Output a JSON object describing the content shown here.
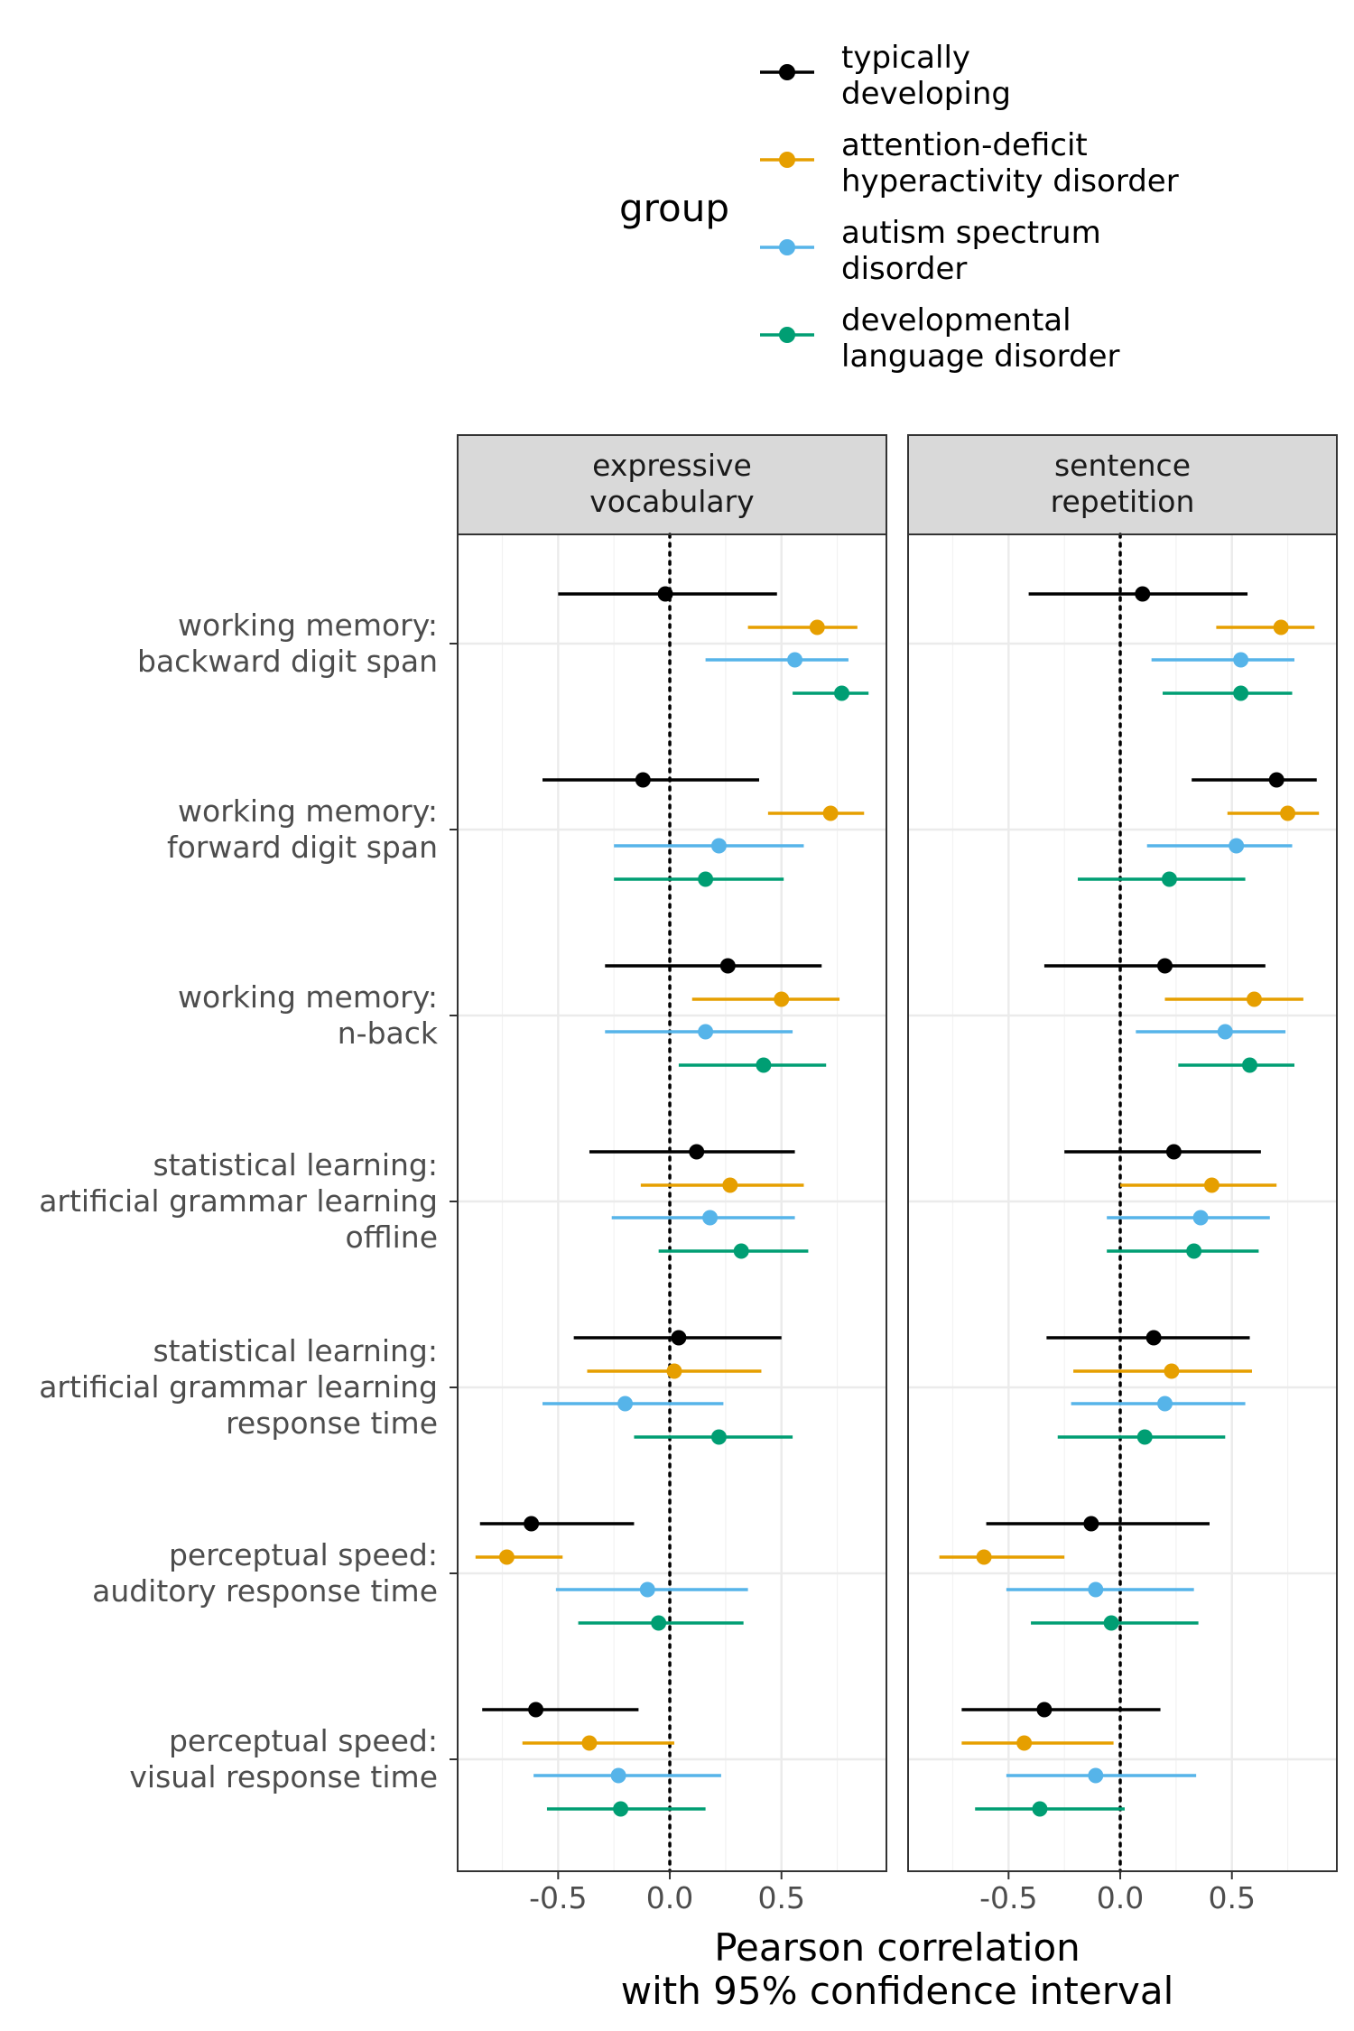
{
  "chart_data": {
    "type": "scatter",
    "xlabel": [
      "Pearson correlation",
      "with 95% confidence interval"
    ],
    "xticks": [
      "-0.5",
      "0.0",
      "0.5"
    ],
    "xtick_values": [
      -0.5,
      0.0,
      0.5
    ],
    "xlim": [
      -0.95,
      0.97
    ],
    "reference_line": 0,
    "grid": true,
    "legend": {
      "title": "group",
      "position": "top",
      "entries": [
        {
          "label": [
            "typically",
            "developing"
          ],
          "color": "#000000"
        },
        {
          "label": [
            "attention-deficit",
            "hyperactivity disorder"
          ],
          "color": "#E69F00"
        },
        {
          "label": [
            "autism spectrum",
            "disorder"
          ],
          "color": "#56B4E9"
        },
        {
          "label": [
            "developmental",
            "language disorder"
          ],
          "color": "#009E73"
        }
      ]
    },
    "categories": [
      {
        "label": [
          "working memory:",
          "backward digit span"
        ]
      },
      {
        "label": [
          "working memory:",
          "forward digit span"
        ]
      },
      {
        "label": [
          "working memory:",
          "n-back"
        ]
      },
      {
        "label": [
          "statistical learning:",
          "artificial grammar learning",
          "offline"
        ]
      },
      {
        "label": [
          "statistical learning:",
          "artificial grammar learning",
          "response time"
        ]
      },
      {
        "label": [
          "perceptual speed:",
          "auditory response time"
        ]
      },
      {
        "label": [
          "perceptual speed:",
          "visual response time"
        ]
      }
    ],
    "panels": [
      {
        "title": [
          "expressive",
          "vocabulary"
        ],
        "series": [
          {
            "group": "typically developing",
            "color": "#000000",
            "points": [
              {
                "r": -0.02,
                "lo": -0.5,
                "hi": 0.48
              },
              {
                "r": -0.12,
                "lo": -0.57,
                "hi": 0.4
              },
              {
                "r": 0.26,
                "lo": -0.29,
                "hi": 0.68
              },
              {
                "r": 0.12,
                "lo": -0.36,
                "hi": 0.56
              },
              {
                "r": 0.04,
                "lo": -0.43,
                "hi": 0.5
              },
              {
                "r": -0.62,
                "lo": -0.85,
                "hi": -0.16
              },
              {
                "r": -0.6,
                "lo": -0.84,
                "hi": -0.14
              }
            ]
          },
          {
            "group": "attention-deficit hyperactivity disorder",
            "color": "#E69F00",
            "points": [
              {
                "r": 0.66,
                "lo": 0.35,
                "hi": 0.84
              },
              {
                "r": 0.72,
                "lo": 0.44,
                "hi": 0.87
              },
              {
                "r": 0.5,
                "lo": 0.1,
                "hi": 0.76
              },
              {
                "r": 0.27,
                "lo": -0.13,
                "hi": 0.6
              },
              {
                "r": 0.02,
                "lo": -0.37,
                "hi": 0.41
              },
              {
                "r": -0.73,
                "lo": -0.87,
                "hi": -0.48
              },
              {
                "r": -0.36,
                "lo": -0.66,
                "hi": 0.02
              }
            ]
          },
          {
            "group": "autism spectrum disorder",
            "color": "#56B4E9",
            "points": [
              {
                "r": 0.56,
                "lo": 0.16,
                "hi": 0.8
              },
              {
                "r": 0.22,
                "lo": -0.25,
                "hi": 0.6
              },
              {
                "r": 0.16,
                "lo": -0.29,
                "hi": 0.55
              },
              {
                "r": 0.18,
                "lo": -0.26,
                "hi": 0.56
              },
              {
                "r": -0.2,
                "lo": -0.57,
                "hi": 0.24
              },
              {
                "r": -0.1,
                "lo": -0.51,
                "hi": 0.35
              },
              {
                "r": -0.23,
                "lo": -0.61,
                "hi": 0.23
              }
            ]
          },
          {
            "group": "developmental language disorder",
            "color": "#009E73",
            "points": [
              {
                "r": 0.77,
                "lo": 0.55,
                "hi": 0.89
              },
              {
                "r": 0.16,
                "lo": -0.25,
                "hi": 0.51
              },
              {
                "r": 0.42,
                "lo": 0.04,
                "hi": 0.7
              },
              {
                "r": 0.32,
                "lo": -0.05,
                "hi": 0.62
              },
              {
                "r": 0.22,
                "lo": -0.16,
                "hi": 0.55
              },
              {
                "r": -0.05,
                "lo": -0.41,
                "hi": 0.33
              },
              {
                "r": -0.22,
                "lo": -0.55,
                "hi": 0.16
              }
            ]
          }
        ]
      },
      {
        "title": [
          "sentence",
          "repetition"
        ],
        "series": [
          {
            "group": "typically developing",
            "color": "#000000",
            "points": [
              {
                "r": 0.1,
                "lo": -0.41,
                "hi": 0.57
              },
              {
                "r": 0.7,
                "lo": 0.32,
                "hi": 0.88
              },
              {
                "r": 0.2,
                "lo": -0.34,
                "hi": 0.65
              },
              {
                "r": 0.24,
                "lo": -0.25,
                "hi": 0.63
              },
              {
                "r": 0.15,
                "lo": -0.33,
                "hi": 0.58
              },
              {
                "r": -0.13,
                "lo": -0.6,
                "hi": 0.4
              },
              {
                "r": -0.34,
                "lo": -0.71,
                "hi": 0.18
              }
            ]
          },
          {
            "group": "attention-deficit hyperactivity disorder",
            "color": "#E69F00",
            "points": [
              {
                "r": 0.72,
                "lo": 0.43,
                "hi": 0.87
              },
              {
                "r": 0.75,
                "lo": 0.48,
                "hi": 0.89
              },
              {
                "r": 0.6,
                "lo": 0.2,
                "hi": 0.82
              },
              {
                "r": 0.41,
                "lo": 0.0,
                "hi": 0.7
              },
              {
                "r": 0.23,
                "lo": -0.21,
                "hi": 0.59
              },
              {
                "r": -0.61,
                "lo": -0.81,
                "hi": -0.25
              },
              {
                "r": -0.43,
                "lo": -0.71,
                "hi": -0.03
              }
            ]
          },
          {
            "group": "autism spectrum disorder",
            "color": "#56B4E9",
            "points": [
              {
                "r": 0.54,
                "lo": 0.14,
                "hi": 0.78
              },
              {
                "r": 0.52,
                "lo": 0.12,
                "hi": 0.77
              },
              {
                "r": 0.47,
                "lo": 0.07,
                "hi": 0.74
              },
              {
                "r": 0.36,
                "lo": -0.06,
                "hi": 0.67
              },
              {
                "r": 0.2,
                "lo": -0.22,
                "hi": 0.56
              },
              {
                "r": -0.11,
                "lo": -0.51,
                "hi": 0.33
              },
              {
                "r": -0.11,
                "lo": -0.51,
                "hi": 0.34
              }
            ]
          },
          {
            "group": "developmental language disorder",
            "color": "#009E73",
            "points": [
              {
                "r": 0.54,
                "lo": 0.19,
                "hi": 0.77
              },
              {
                "r": 0.22,
                "lo": -0.19,
                "hi": 0.56
              },
              {
                "r": 0.58,
                "lo": 0.26,
                "hi": 0.78
              },
              {
                "r": 0.33,
                "lo": -0.06,
                "hi": 0.62
              },
              {
                "r": 0.11,
                "lo": -0.28,
                "hi": 0.47
              },
              {
                "r": -0.04,
                "lo": -0.4,
                "hi": 0.35
              },
              {
                "r": -0.36,
                "lo": -0.65,
                "hi": 0.02
              }
            ]
          }
        ]
      }
    ]
  }
}
